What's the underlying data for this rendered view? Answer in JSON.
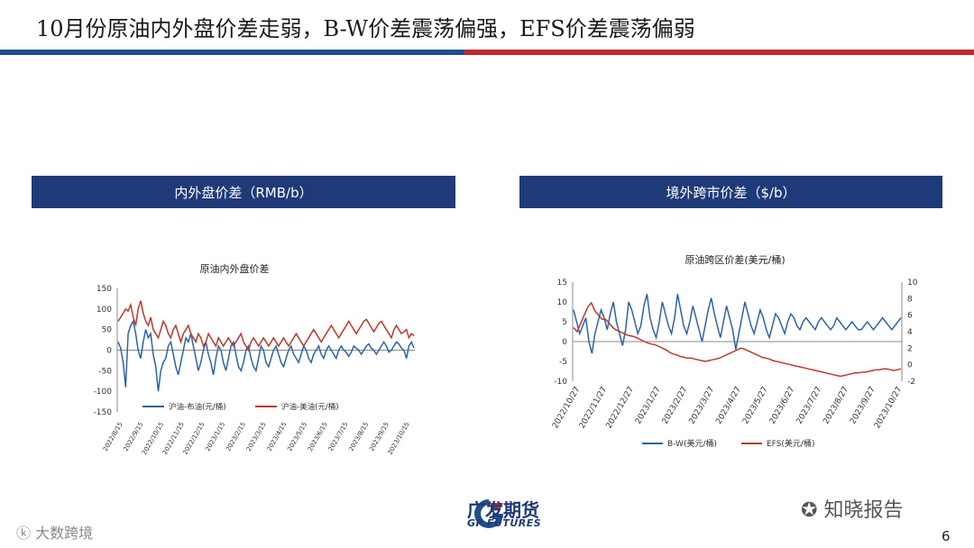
{
  "slide": {
    "title": "10月份原油内外盘价差走弱，B-W价差震荡偏强，EFS价差震荡偏弱",
    "page_number": "6",
    "watermark_right": "知晓报告",
    "watermark_left": "大数跨境",
    "logo_cn": "广发期货",
    "logo_en": "GF FUTURES"
  },
  "colors": {
    "header_bg": "#1f3a78",
    "rule_blue": "#1f4e8c",
    "rule_red": "#c0282d",
    "series_blue": "#2e63a8",
    "series_red": "#c0382b"
  },
  "panels": {
    "left_header": "内外盘价差（RMB/b）",
    "right_header": "境外跨市价差（$/b）"
  },
  "chart_data": [
    {
      "type": "line",
      "title": "原油内外盘价差",
      "x_ticks": [
        "2022/8/15",
        "2022/9/15",
        "2022/10/15",
        "2022/11/15",
        "2022/12/15",
        "2023/1/15",
        "2023/2/15",
        "2023/3/15",
        "2023/4/15",
        "2023/5/15",
        "2023/6/15",
        "2023/7/15",
        "2023/8/15",
        "2023/9/15",
        "2023/10/15"
      ],
      "y_ticks": [
        "150",
        "100",
        "50",
        "0",
        "-50",
        "-100",
        "-150"
      ],
      "ylim": [
        -150,
        150
      ],
      "grid": false,
      "legend": "bottom",
      "series": [
        {
          "name": "沪油-布油(元/桶)",
          "color": "#2e63a8",
          "values": [
            20,
            5,
            -30,
            -90,
            40,
            60,
            70,
            40,
            0,
            -20,
            20,
            50,
            30,
            40,
            -10,
            -40,
            -100,
            -50,
            -30,
            -20,
            10,
            20,
            -10,
            -40,
            -60,
            -30,
            0,
            30,
            20,
            40,
            10,
            -20,
            -50,
            -30,
            0,
            20,
            -10,
            -30,
            -60,
            -20,
            10,
            0,
            -30,
            -50,
            -20,
            10,
            20,
            -10,
            -40,
            -50,
            -30,
            0,
            10,
            -20,
            -40,
            -50,
            -20,
            10,
            0,
            -30,
            -40,
            -20,
            0,
            10,
            -10,
            -30,
            -40,
            -20,
            0,
            10,
            -10,
            -20,
            -30,
            -10,
            10,
            0,
            -20,
            -30,
            -10,
            0,
            10,
            -10,
            -20,
            0,
            10,
            0,
            -10,
            -20,
            0,
            10,
            0,
            -5,
            -15,
            -5,
            10,
            5,
            0,
            -10,
            0,
            10,
            15,
            5,
            0,
            -10,
            0,
            10,
            20,
            10,
            -5,
            0,
            10,
            20,
            15,
            5,
            0,
            -20,
            10,
            20,
            5
          ]
        },
        {
          "name": "沪油-美油(元/桶)",
          "color": "#c0382b",
          "values": [
            70,
            80,
            90,
            100,
            95,
            110,
            80,
            60,
            100,
            120,
            90,
            70,
            60,
            80,
            50,
            40,
            30,
            50,
            70,
            60,
            40,
            30,
            50,
            60,
            40,
            20,
            40,
            50,
            60,
            40,
            30,
            20,
            40,
            30,
            10,
            20,
            40,
            30,
            20,
            10,
            30,
            20,
            10,
            20,
            30,
            20,
            10,
            20,
            30,
            40,
            20,
            10,
            0,
            20,
            30,
            20,
            10,
            20,
            30,
            20,
            10,
            20,
            30,
            20,
            10,
            20,
            30,
            20,
            10,
            20,
            30,
            40,
            30,
            20,
            10,
            20,
            30,
            40,
            50,
            40,
            30,
            20,
            30,
            40,
            50,
            60,
            50,
            40,
            30,
            40,
            50,
            60,
            70,
            60,
            50,
            40,
            50,
            60,
            70,
            75,
            65,
            55,
            45,
            55,
            65,
            70,
            60,
            50,
            40,
            30,
            50,
            60,
            50,
            40,
            45,
            50,
            30,
            40,
            35
          ]
        }
      ]
    },
    {
      "type": "line",
      "title": "原油跨区价差(美元/桶)",
      "x_ticks": [
        "2022/10/27",
        "2022/11/27",
        "2022/12/27",
        "2023/1/27",
        "2023/2/27",
        "2023/3/27",
        "2023/4/27",
        "2023/5/27",
        "2023/6/27",
        "2023/7/27",
        "2023/8/27",
        "2023/9/27",
        "2023/10/27"
      ],
      "y_left_ticks": [
        "15",
        "10",
        "5",
        "0",
        "-5",
        "-10"
      ],
      "y_right_ticks": [
        "10",
        "8",
        "6",
        "4",
        "2",
        "0",
        "-2"
      ],
      "ylim_left": [
        -10,
        15
      ],
      "ylim_right": [
        -2,
        10
      ],
      "grid": false,
      "legend": "bottom",
      "series": [
        {
          "name": "B-W(美元/桶)",
          "axis": "left",
          "color": "#2e63a8",
          "values": [
            8,
            5,
            2,
            4,
            6,
            0,
            -3,
            2,
            5,
            8,
            6,
            3,
            7,
            10,
            5,
            2,
            -1,
            3,
            10,
            8,
            5,
            2,
            4,
            9,
            12,
            6,
            3,
            1,
            5,
            10,
            7,
            4,
            2,
            6,
            12,
            8,
            4,
            2,
            5,
            9,
            6,
            3,
            0,
            4,
            8,
            11,
            7,
            4,
            1,
            5,
            9,
            6,
            3,
            -2,
            2,
            6,
            10,
            7,
            4,
            2,
            5,
            8,
            6,
            3,
            1,
            4,
            7,
            6,
            4,
            2,
            5,
            7,
            6,
            4,
            3,
            5,
            6,
            5,
            4,
            3,
            5,
            6,
            5,
            4,
            3,
            4,
            6,
            5,
            4,
            3,
            4,
            5,
            4,
            3,
            3,
            4,
            5,
            4,
            3,
            4,
            5,
            6,
            5,
            4,
            3,
            4,
            5,
            6
          ]
        },
        {
          "name": "EFS(美元/桶)",
          "axis": "right",
          "color": "#c0382b",
          "values": [
            4.5,
            4,
            5,
            6,
            7,
            7.5,
            6.5,
            6,
            5.5,
            5.5,
            5,
            4.5,
            4.2,
            4,
            3.8,
            3.6,
            3.5,
            3.4,
            3.2,
            3,
            2.8,
            2.6,
            2.5,
            2.4,
            2.2,
            2,
            1.8,
            1.5,
            1.3,
            1.2,
            1,
            0.9,
            0.8,
            0.8,
            0.7,
            0.6,
            0.5,
            0.4,
            0.5,
            0.6,
            0.7,
            0.8,
            1,
            1.2,
            1.4,
            1.6,
            1.8,
            2,
            1.9,
            1.7,
            1.5,
            1.3,
            1.1,
            0.9,
            0.8,
            0.7,
            0.5,
            0.4,
            0.3,
            0.2,
            0.1,
            0,
            -0.1,
            -0.2,
            -0.3,
            -0.4,
            -0.5,
            -0.6,
            -0.7,
            -0.8,
            -0.9,
            -1,
            -1.1,
            -1.2,
            -1.3,
            -1.4,
            -1.3,
            -1.2,
            -1.1,
            -1,
            -1,
            -0.9,
            -0.9,
            -0.8,
            -0.7,
            -0.6,
            -0.6,
            -0.5,
            -0.5,
            -0.6,
            -0.7,
            -0.6,
            -0.5
          ]
        }
      ]
    }
  ]
}
